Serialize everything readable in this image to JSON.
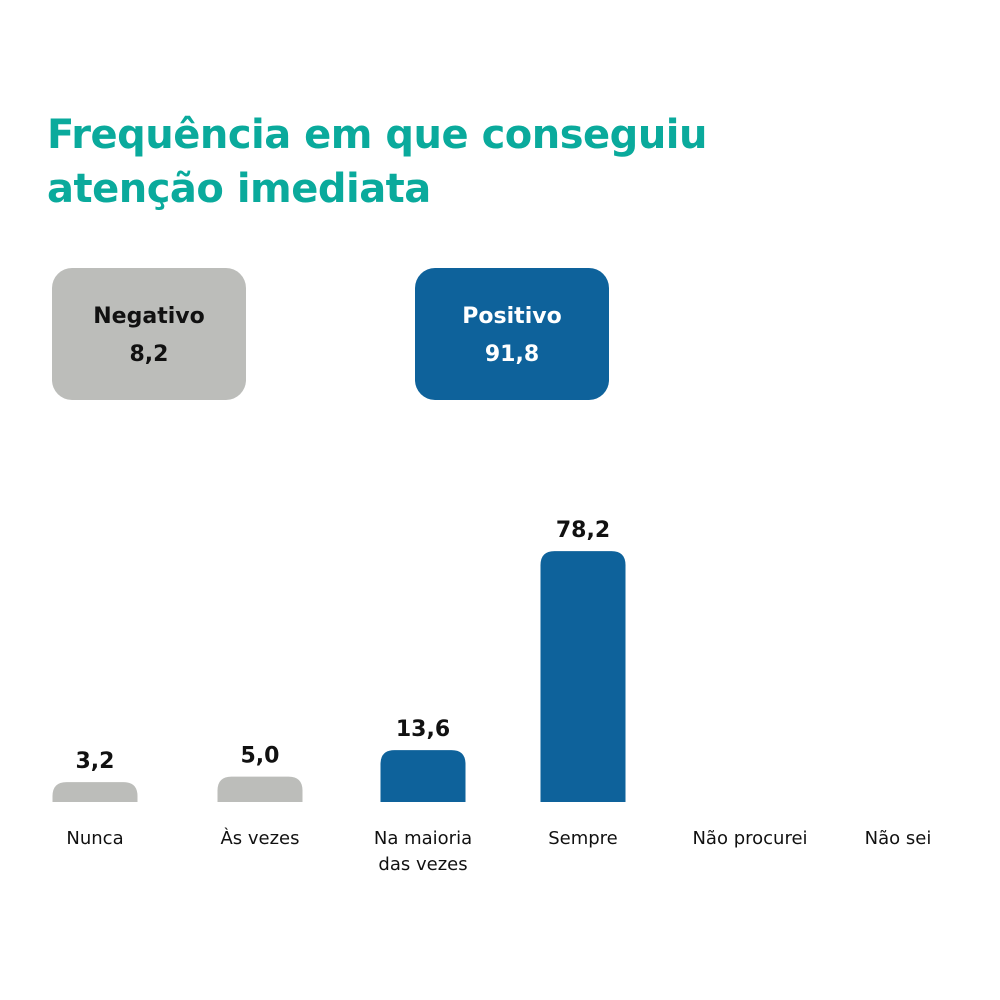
{
  "chart_data": {
    "type": "bar",
    "title": "Frequência em que conseguiu atenção imediata",
    "categories": [
      "Nunca",
      "Às vezes",
      "Na maioria das vezes",
      "Sempre",
      "Não procurei",
      "Não sei"
    ],
    "values": [
      3.2,
      5.0,
      13.6,
      78.2,
      null,
      null
    ],
    "value_labels": [
      "3,2",
      "5,0",
      "13,6",
      "78,2",
      "",
      ""
    ],
    "bar_colors": [
      "#bcbdba",
      "#bcbdba",
      "#0e629b",
      "#0e629b",
      "#0e629b",
      "#0e629b"
    ],
    "grid": false,
    "summary": {
      "negative": {
        "label": "Negativo",
        "value": "8,2",
        "color": "#bcbdba"
      },
      "positive": {
        "label": "Positivo",
        "value": "91,8",
        "color": "#0e629b"
      }
    }
  },
  "colors": {
    "title": "#0aaa9c",
    "negative": "#bcbdba",
    "positive": "#0e629b"
  }
}
